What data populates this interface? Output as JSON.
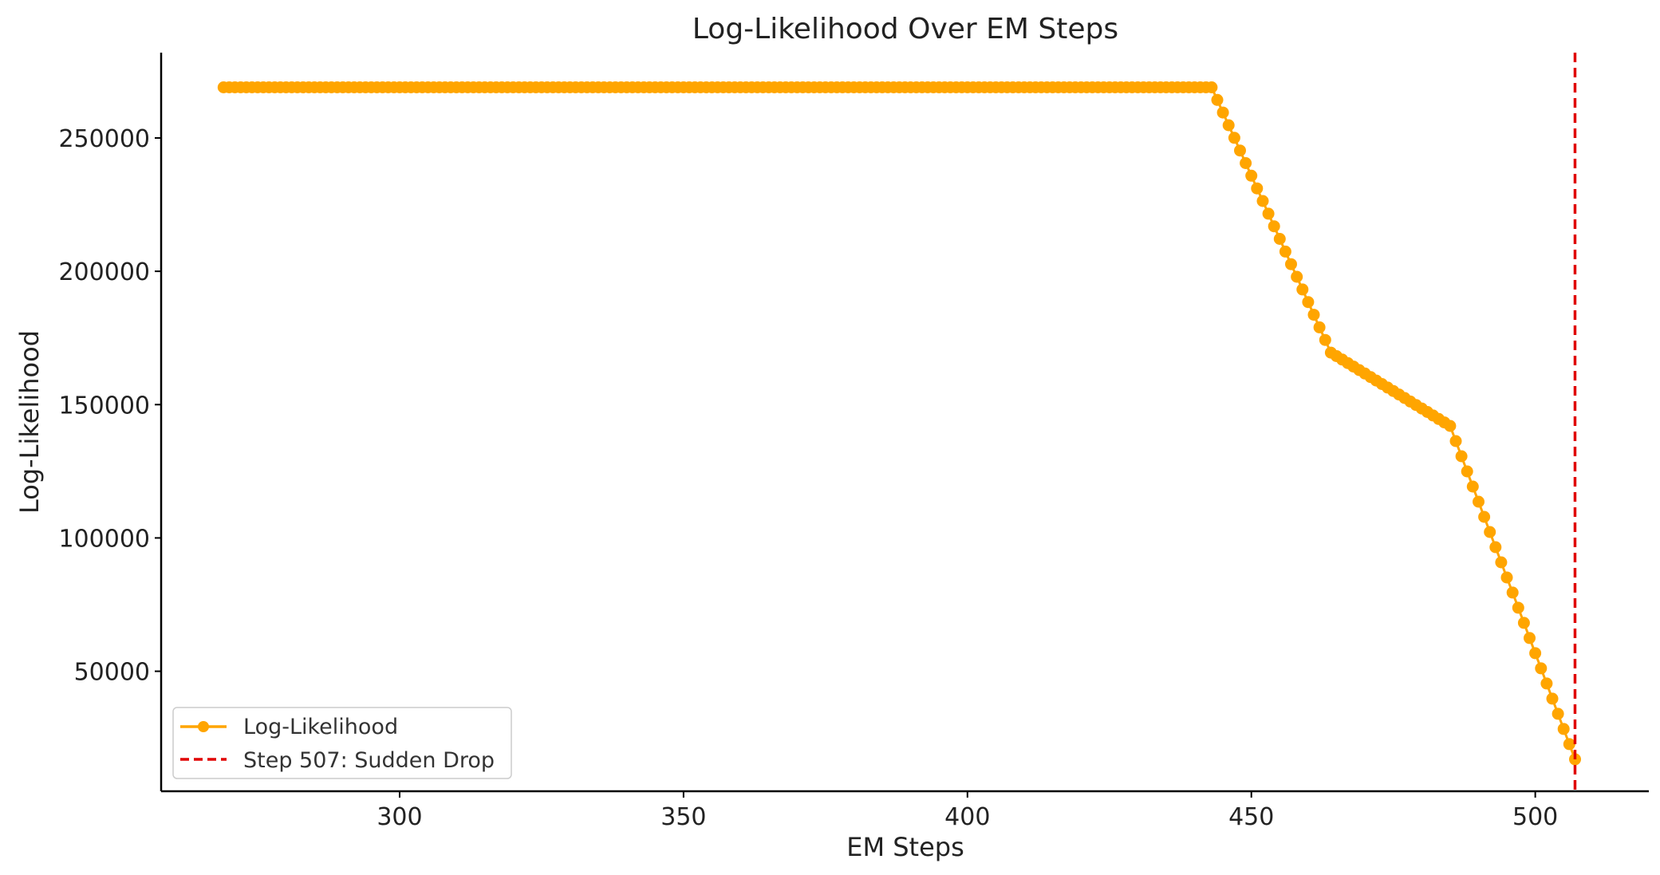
{
  "chart_data": {
    "type": "line",
    "title": "Log-Likelihood Over EM Steps",
    "xlabel": "EM Steps",
    "ylabel": "Log-Likelihood",
    "xlim": [
      258,
      520
    ],
    "ylim": [
      5000,
      282000
    ],
    "xticks": [
      300,
      350,
      400,
      450,
      500
    ],
    "yticks": [
      50000,
      100000,
      150000,
      200000,
      250000
    ],
    "xtick_labels": [
      "300",
      "350",
      "400",
      "450",
      "500"
    ],
    "ytick_labels": [
      "50000",
      "100000",
      "150000",
      "200000",
      "250000"
    ],
    "grid": false,
    "legend_position": "lower-left",
    "series": [
      {
        "name": "Log-Likelihood",
        "color": "#FFA500",
        "marker": "circle",
        "segments": [
          {
            "x_start": 269,
            "x_end": 443,
            "y_start": 269000,
            "y_end": 269000
          },
          {
            "x_start": 443,
            "x_end": 464,
            "y_start": 269000,
            "y_end": 169500
          },
          {
            "x_start": 464,
            "x_end": 485,
            "y_start": 169500,
            "y_end": 142000
          },
          {
            "x_start": 485,
            "x_end": 507,
            "y_start": 142000,
            "y_end": 17000
          }
        ]
      }
    ],
    "vlines": [
      {
        "name": "Step 507: Sudden Drop",
        "x": 507,
        "color": "#E00000",
        "style": "dashed"
      }
    ]
  }
}
